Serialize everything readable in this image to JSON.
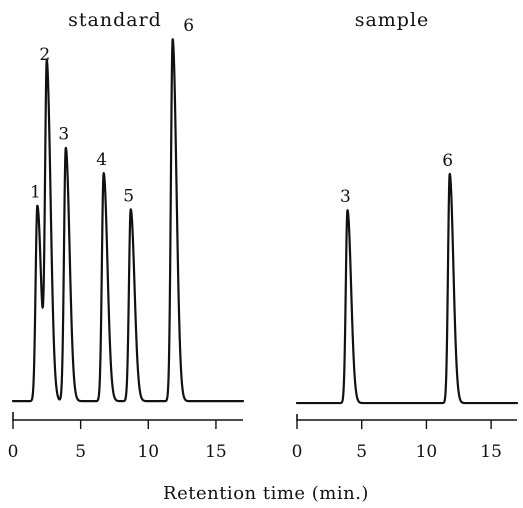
{
  "chart_data": [
    {
      "type": "line",
      "title": "standard",
      "x_ticks": [
        0,
        5,
        10,
        15
      ],
      "xlim": [
        0,
        17
      ],
      "baseline": 0.03,
      "peaks": [
        {
          "label": "1",
          "time": 1.8,
          "height": 0.54
        },
        {
          "label": "2",
          "time": 2.5,
          "height": 0.92
        },
        {
          "label": "3",
          "time": 3.9,
          "height": 0.7
        },
        {
          "label": "4",
          "time": 6.7,
          "height": 0.63
        },
        {
          "label": "5",
          "time": 8.7,
          "height": 0.53
        },
        {
          "label": "6",
          "time": 11.8,
          "height": 1.0
        }
      ]
    },
    {
      "type": "line",
      "title": "sample",
      "x_ticks": [
        0,
        5,
        10,
        15
      ],
      "xlim": [
        0,
        17
      ],
      "baseline": 0.03,
      "peaks": [
        {
          "label": "3",
          "time": 3.9,
          "height": 0.53
        },
        {
          "label": "6",
          "time": 11.8,
          "height": 0.63
        }
      ]
    }
  ],
  "shared_xlabel": "Retention time (min.)"
}
